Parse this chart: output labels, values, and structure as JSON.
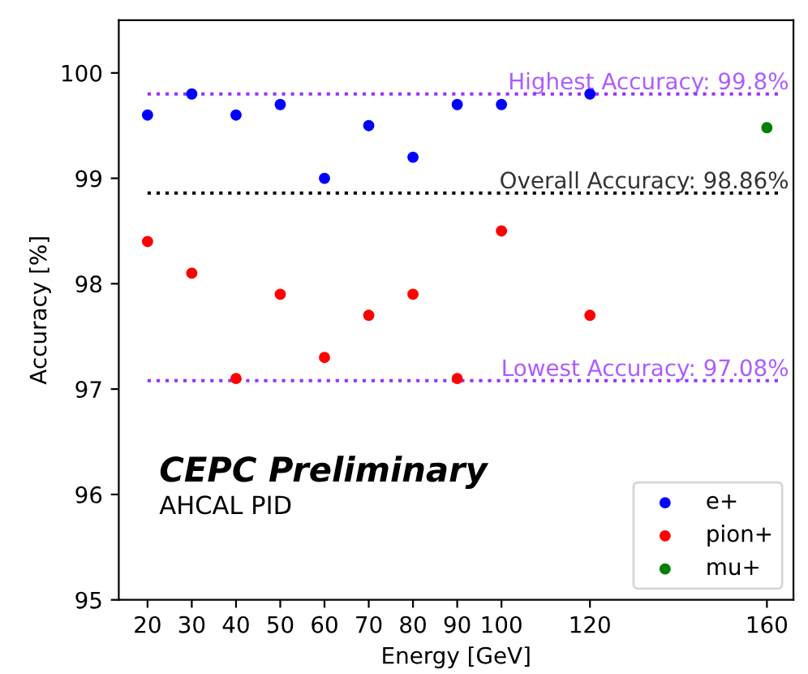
{
  "chart_data": {
    "type": "scatter",
    "xlabel": "Energy [GeV]",
    "ylabel": "Accuracy [%]",
    "annotations": [
      "CEPC Preliminary",
      "AHCAL PID"
    ],
    "xlim": [
      13.5,
      166
    ],
    "xticks": [
      20,
      30,
      40,
      50,
      60,
      70,
      80,
      90,
      100,
      120,
      160
    ],
    "ylim": [
      95,
      100.5
    ],
    "yticks": [
      95,
      96,
      97,
      98,
      99,
      100
    ],
    "series": [
      {
        "name": "e+",
        "color": "#0000ff",
        "x": [
          20,
          30,
          40,
          50,
          60,
          70,
          80,
          90,
          100,
          120
        ],
        "values": [
          99.6,
          99.8,
          99.6,
          99.7,
          99.0,
          99.5,
          99.2,
          99.7,
          99.7,
          99.8
        ]
      },
      {
        "name": "pion+",
        "color": "#ff0000",
        "x": [
          20,
          30,
          40,
          50,
          60,
          70,
          80,
          90,
          100,
          120
        ],
        "values": [
          98.4,
          98.1,
          97.1,
          97.9,
          97.3,
          97.7,
          97.9,
          97.1,
          98.5,
          97.7
        ]
      },
      {
        "name": "mu+",
        "color": "#008000",
        "x": [
          160
        ],
        "values": [
          99.48
        ]
      }
    ],
    "ref_lines": [
      {
        "axis": "y",
        "value": 99.8,
        "label": "Highest Accuracy: 99.8%",
        "color": "#9933ff",
        "line_style": "dotted"
      },
      {
        "axis": "y",
        "value": 98.86,
        "label": "Overall Accuracy: 98.86%",
        "color": "#000000",
        "line_style": "dotted"
      },
      {
        "axis": "y",
        "value": 97.08,
        "label": "Lowest Accuracy: 97.08%",
        "color": "#9933ff",
        "line_style": "dotted"
      }
    ],
    "marker": "circle",
    "grid": false,
    "legend": "bottom right"
  }
}
